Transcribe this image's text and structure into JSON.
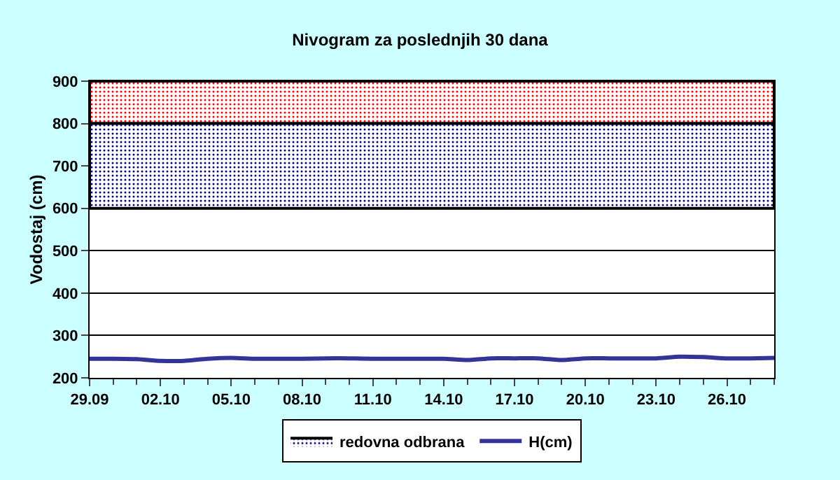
{
  "chart_data": {
    "type": "line",
    "title": "Nivogram za poslednjih 30 dana",
    "ylabel": "Vodostaj (cm)",
    "x": [
      "--09-29",
      "--09-30",
      "--10-01",
      "--10-02",
      "--10-03",
      "--10-04",
      "--10-05",
      "--10-06",
      "--10-07",
      "--10-08",
      "--10-09",
      "--10-10",
      "--10-11",
      "--10-12",
      "--10-13",
      "--10-14",
      "--10-15",
      "--10-16",
      "--10-17",
      "--10-18",
      "--10-19",
      "--10-20",
      "--10-21",
      "--10-22",
      "--10-23",
      "--10-24",
      "--10-25",
      "--10-26",
      "--10-27",
      "--10-28"
    ],
    "series": [
      {
        "name": "H(cm)",
        "color": "#333399",
        "values": [
          245,
          245,
          244,
          240,
          240,
          245,
          247,
          245,
          245,
          245,
          246,
          246,
          245,
          245,
          245,
          245,
          242,
          246,
          246,
          246,
          242,
          246,
          246,
          246,
          246,
          250,
          249,
          246,
          246,
          247
        ]
      }
    ],
    "xlim": [
      "--09-29",
      "--10-28"
    ],
    "xticks": [
      {
        "value": "--09-29",
        "label": "29.09"
      },
      {
        "value": "--10-02",
        "label": "02.10"
      },
      {
        "value": "--10-05",
        "label": "05.10"
      },
      {
        "value": "--10-08",
        "label": "08.10"
      },
      {
        "value": "--10-11",
        "label": "11.10"
      },
      {
        "value": "--10-14",
        "label": "14.10"
      },
      {
        "value": "--10-17",
        "label": "17.10"
      },
      {
        "value": "--10-20",
        "label": "20.10"
      },
      {
        "value": "--10-23",
        "label": "23.10"
      },
      {
        "value": "--10-26",
        "label": "26.10"
      }
    ],
    "ylim": [
      200,
      900
    ],
    "yticks": [
      200,
      300,
      400,
      500,
      600,
      700,
      800,
      900
    ],
    "bands": [
      {
        "axis": "y",
        "from": 800,
        "to": 900,
        "color": "#ff0000"
      },
      {
        "axis": "y",
        "from": 600,
        "to": 800,
        "label": "redovna odbrana",
        "color": "#000080"
      }
    ],
    "grid": "y",
    "legend": "bottom",
    "marker": "none",
    "line_style": "solid"
  }
}
